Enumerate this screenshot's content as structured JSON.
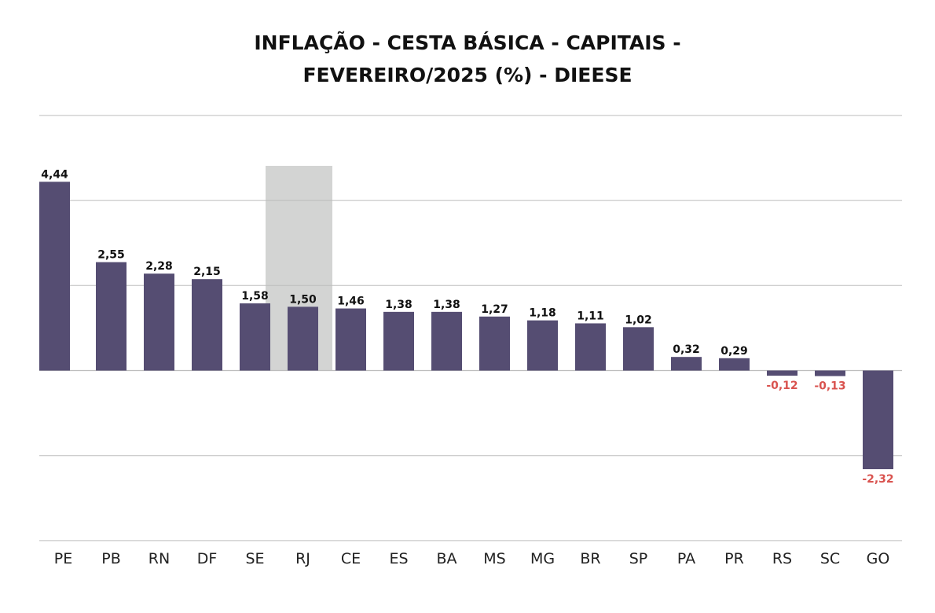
{
  "title": {
    "line1": "INFLAÇÃO - CESTA BÁSICA - CAPITAIS -",
    "line2": "FEVEREIRO/2025 (%) - DIEESE"
  },
  "colors": {
    "bar": "#554d72",
    "positive_label": "#111111",
    "negative_label": "#d9534f",
    "highlight": "#d3d4d3",
    "grid": "#bdbdbd"
  },
  "chart_data": {
    "type": "bar",
    "categories": [
      "PE",
      "PB",
      "RN",
      "DF",
      "SE",
      "RJ",
      "CE",
      "ES",
      "BA",
      "MS",
      "MG",
      "BR",
      "SP",
      "PA",
      "PR",
      "RS",
      "SC",
      "GO"
    ],
    "values": [
      4.44,
      2.55,
      2.28,
      2.15,
      1.58,
      1.5,
      1.46,
      1.38,
      1.38,
      1.27,
      1.18,
      1.11,
      1.02,
      0.32,
      0.29,
      -0.12,
      -0.13,
      -2.32
    ],
    "value_labels": [
      "4,44",
      "2,55",
      "2,28",
      "2,15",
      "1,58",
      "1,50",
      "1,46",
      "1,38",
      "1,38",
      "1,27",
      "1,18",
      "1,11",
      "1,02",
      "0,32",
      "0,29",
      "-0,12",
      "-0,13",
      "-2,32"
    ],
    "highlighted_category": "RJ",
    "ylim": [
      -4,
      6
    ],
    "gridlines": [
      -4,
      -2,
      0,
      2,
      4,
      6
    ],
    "grid": true,
    "legend": false,
    "title": "INFLAÇÃO - CESTA BÁSICA - CAPITAIS - FEVEREIRO/2025 (%) - DIEESE",
    "xlabel": "",
    "ylabel": ""
  }
}
